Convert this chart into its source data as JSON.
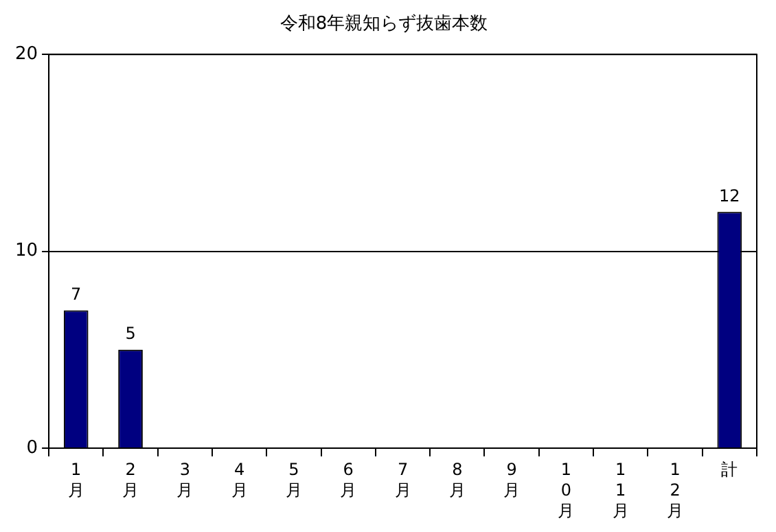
{
  "chart_data": {
    "type": "bar",
    "title": "令和8年親知らず抜歯本数",
    "categories": [
      "1月",
      "2月",
      "3月",
      "4月",
      "5月",
      "6月",
      "7月",
      "8月",
      "9月",
      "10月",
      "11月",
      "12月",
      "計"
    ],
    "values": [
      7,
      5,
      0,
      0,
      0,
      0,
      0,
      0,
      0,
      0,
      0,
      0,
      12
    ],
    "value_labels": [
      "7",
      "5",
      null,
      null,
      null,
      null,
      null,
      null,
      null,
      null,
      null,
      null,
      "12"
    ],
    "color": "#000080",
    "ylim": [
      0,
      20
    ],
    "yticks": [
      0,
      10,
      20
    ],
    "grid": "y",
    "legend": false
  }
}
